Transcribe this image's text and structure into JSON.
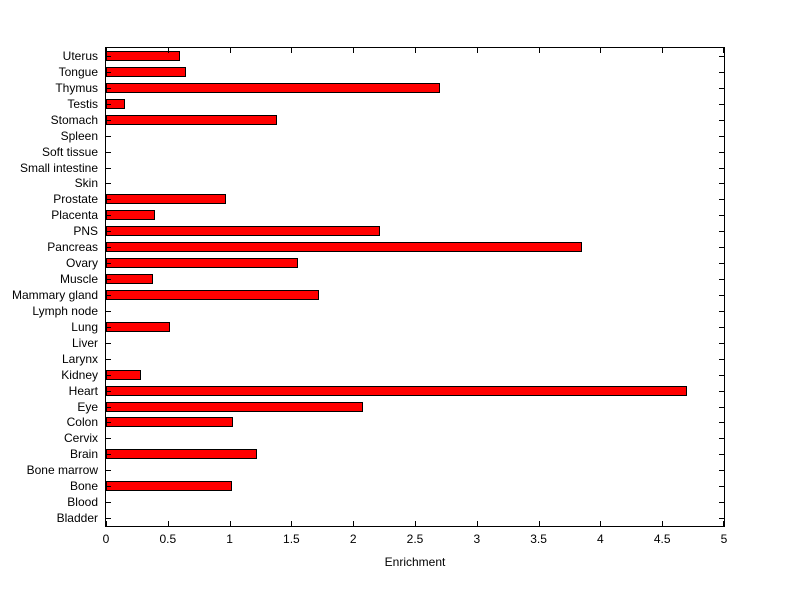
{
  "figure": {
    "background": "#ffffff"
  },
  "chart_data": {
    "type": "bar",
    "orientation": "horizontal",
    "title": "",
    "xlabel": "Enrichment",
    "ylabel": "",
    "xlim": [
      0,
      5
    ],
    "xticks": [
      0,
      0.5,
      1,
      1.5,
      2,
      2.5,
      3,
      3.5,
      4,
      4.5,
      5
    ],
    "grid": false,
    "legend": "none",
    "bar_color": "#ff0000",
    "bar_edge_color": "#000000",
    "categories": [
      "Uterus",
      "Tongue",
      "Thymus",
      "Testis",
      "Stomach",
      "Spleen",
      "Soft tissue",
      "Small intestine",
      "Skin",
      "Prostate",
      "Placenta",
      "PNS",
      "Pancreas",
      "Ovary",
      "Muscle",
      "Mammary gland",
      "Lymph node",
      "Lung",
      "Liver",
      "Larynx",
      "Kidney",
      "Heart",
      "Eye",
      "Colon",
      "Cervix",
      "Brain",
      "Bone marrow",
      "Bone",
      "Blood",
      "Bladder"
    ],
    "values": [
      0.6,
      0.65,
      2.7,
      0.15,
      1.38,
      0,
      0,
      0,
      0,
      0.97,
      0.4,
      2.22,
      3.85,
      1.55,
      0.38,
      1.72,
      0,
      0.52,
      0,
      0,
      0.28,
      4.7,
      2.08,
      1.03,
      0,
      1.22,
      0,
      1.02,
      0,
      0
    ]
  }
}
